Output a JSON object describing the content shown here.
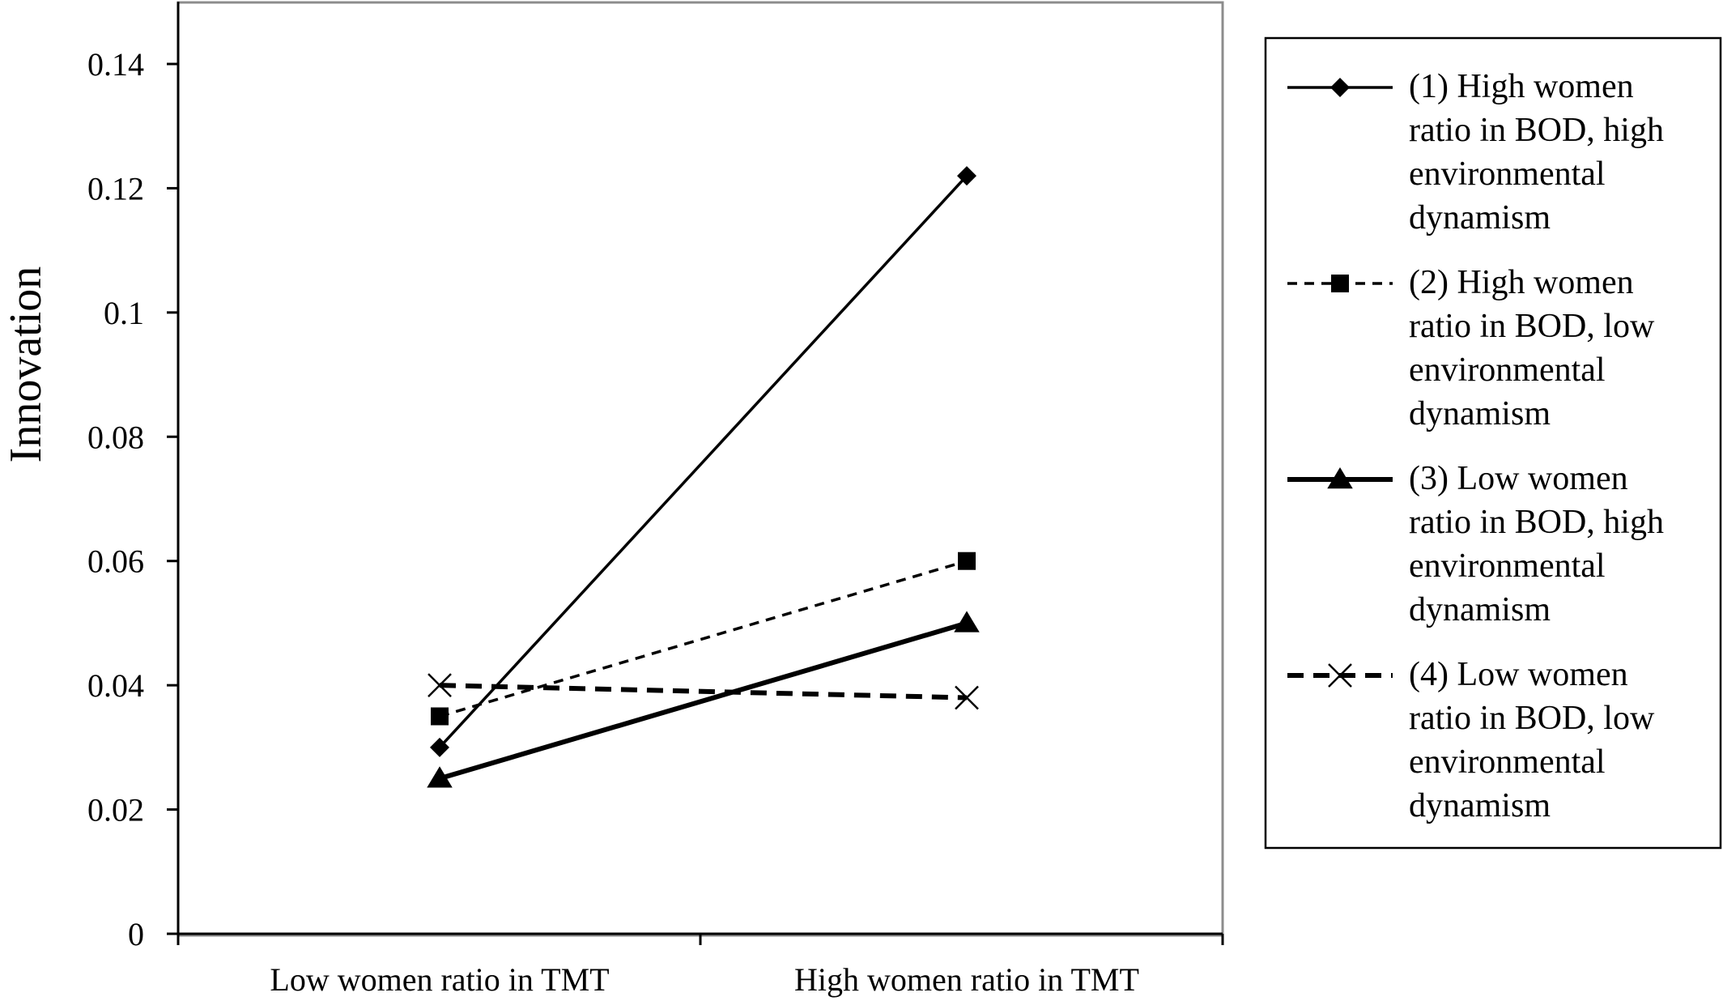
{
  "chart_data": {
    "type": "line",
    "title": "",
    "xlabel": "",
    "ylabel": "Innovation",
    "categories": [
      "Low women ratio in TMT",
      "High women ratio in TMT"
    ],
    "ylim": [
      0,
      0.15
    ],
    "yticks": [
      0,
      0.02,
      0.04,
      0.06,
      0.08,
      0.1,
      0.12,
      0.14
    ],
    "ytick_labels": [
      "0",
      "0.02",
      "0.04",
      "0.06",
      "0.08",
      "0.1",
      "0.12",
      "0.14"
    ],
    "grid": false,
    "legend_position": "right",
    "series": [
      {
        "name": "(1) High women ratio in BOD, high environmental dynamism",
        "legend_lines": [
          "(1) High women",
          "ratio in BOD, high",
          "environmental",
          "dynamism"
        ],
        "values": [
          0.03,
          0.122
        ],
        "marker": "diamond",
        "line_style": "solid",
        "line_weight": "thin",
        "color": "#000000"
      },
      {
        "name": "(2) High women ratio in BOD, low environmental dynamism",
        "legend_lines": [
          "(2) High women",
          "ratio in BOD, low",
          "environmental",
          "dynamism"
        ],
        "values": [
          0.035,
          0.06
        ],
        "marker": "square",
        "line_style": "dashed",
        "line_weight": "thin",
        "color": "#000000"
      },
      {
        "name": "(3) Low women ratio in BOD, high environmental dynamism",
        "legend_lines": [
          "(3) Low women",
          "ratio in BOD, high",
          "environmental",
          "dynamism"
        ],
        "values": [
          0.025,
          0.05
        ],
        "marker": "triangle",
        "line_style": "solid",
        "line_weight": "thick",
        "color": "#000000"
      },
      {
        "name": "(4) Low women ratio in BOD, low environmental dynamism",
        "legend_lines": [
          "(4) Low women",
          "ratio in BOD, low",
          "environmental",
          "dynamism"
        ],
        "values": [
          0.04,
          0.038
        ],
        "marker": "x",
        "line_style": "dashed",
        "line_weight": "thick",
        "color": "#000000"
      }
    ]
  }
}
